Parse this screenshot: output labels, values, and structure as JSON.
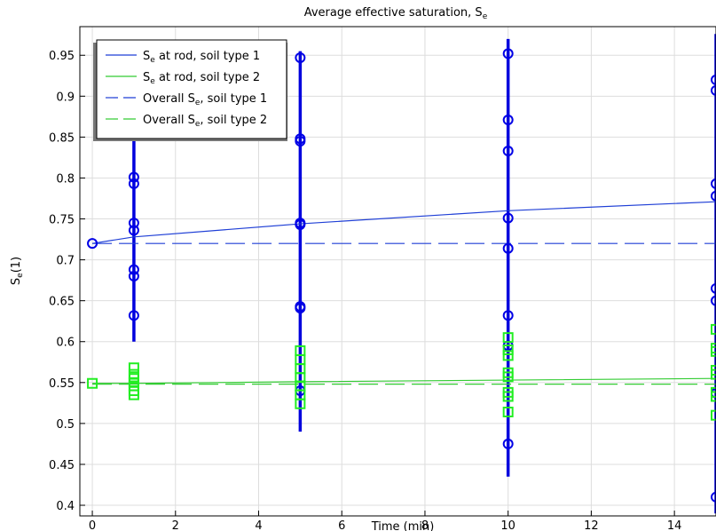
{
  "chart_data": {
    "type": "scatter",
    "title": "Average effective saturation, S",
    "title_sub": "e",
    "xlabel": "Time (min)",
    "ylabel_main": "S",
    "ylabel_sub": "e",
    "ylabel_tail": "(1)",
    "xlim": [
      -0.3,
      15
    ],
    "ylim": [
      0.387,
      0.985
    ],
    "xticks": [
      0,
      2,
      4,
      6,
      8,
      10,
      12,
      14
    ],
    "yticks": [
      0.4,
      0.45,
      0.5,
      0.55,
      0.6,
      0.65,
      0.7,
      0.75,
      0.8,
      0.85,
      0.9,
      0.95
    ],
    "grid": true,
    "legend_position": "top-left",
    "colors": {
      "type1_line": "#1f3fd6",
      "type2_line": "#33cc33",
      "type1_markers": "#0000e6",
      "type2_markers": "#22ee22",
      "errorbar": "#0000dd"
    },
    "legend": [
      {
        "main": "S",
        "sub": "e",
        "tail": " at rod, soil type 1",
        "style": "solid",
        "color": "#1f3fd6"
      },
      {
        "main": "S",
        "sub": "e",
        "tail": " at rod, soil type 2",
        "style": "solid",
        "color": "#33cc33"
      },
      {
        "main": "Overall S",
        "sub": "e",
        "tail": ", soil type 1",
        "style": "dashed",
        "color": "#1f3fd6"
      },
      {
        "main": "Overall S",
        "sub": "e",
        "tail": ", soil type 2",
        "style": "dashed",
        "color": "#33cc33"
      }
    ],
    "series": [
      {
        "x": [
          0,
          1,
          5,
          10,
          15
        ],
        "y": [
          0.72,
          0.728,
          0.744,
          0.76,
          0.771
        ]
      },
      {
        "x": [
          0,
          1,
          5,
          10,
          15
        ],
        "y": [
          0.549,
          0.549,
          0.551,
          0.553,
          0.555
        ]
      },
      {
        "x": [
          0,
          15
        ],
        "y": [
          0.72,
          0.72
        ]
      },
      {
        "x": [
          0,
          15
        ],
        "y": [
          0.548,
          0.548
        ]
      }
    ],
    "type1_points": [
      {
        "x": 0,
        "y": 0.72
      },
      {
        "x": 1,
        "y": 0.801
      },
      {
        "x": 1,
        "y": 0.793
      },
      {
        "x": 1,
        "y": 0.745
      },
      {
        "x": 1,
        "y": 0.736
      },
      {
        "x": 1,
        "y": 0.688
      },
      {
        "x": 1,
        "y": 0.68
      },
      {
        "x": 1,
        "y": 0.632
      },
      {
        "x": 5,
        "y": 0.947
      },
      {
        "x": 5,
        "y": 0.848
      },
      {
        "x": 5,
        "y": 0.845
      },
      {
        "x": 5,
        "y": 0.745
      },
      {
        "x": 5,
        "y": 0.743
      },
      {
        "x": 5,
        "y": 0.643
      },
      {
        "x": 5,
        "y": 0.641
      },
      {
        "x": 5,
        "y": 0.54
      },
      {
        "x": 10,
        "y": 0.952
      },
      {
        "x": 10,
        "y": 0.871
      },
      {
        "x": 10,
        "y": 0.833
      },
      {
        "x": 10,
        "y": 0.751
      },
      {
        "x": 10,
        "y": 0.714
      },
      {
        "x": 10,
        "y": 0.632
      },
      {
        "x": 10,
        "y": 0.595
      },
      {
        "x": 10,
        "y": 0.475
      },
      {
        "x": 15,
        "y": 0.92
      },
      {
        "x": 15,
        "y": 0.907
      },
      {
        "x": 15,
        "y": 0.793
      },
      {
        "x": 15,
        "y": 0.778
      },
      {
        "x": 15,
        "y": 0.665
      },
      {
        "x": 15,
        "y": 0.65
      },
      {
        "x": 15,
        "y": 0.537
      },
      {
        "x": 15,
        "y": 0.41
      }
    ],
    "type2_points": [
      {
        "x": 0,
        "y": 0.549
      },
      {
        "x": 1,
        "y": 0.568
      },
      {
        "x": 1,
        "y": 0.56
      },
      {
        "x": 1,
        "y": 0.555
      },
      {
        "x": 1,
        "y": 0.55
      },
      {
        "x": 1,
        "y": 0.546
      },
      {
        "x": 1,
        "y": 0.54
      },
      {
        "x": 1,
        "y": 0.535
      },
      {
        "x": 5,
        "y": 0.589
      },
      {
        "x": 5,
        "y": 0.578
      },
      {
        "x": 5,
        "y": 0.567
      },
      {
        "x": 5,
        "y": 0.556
      },
      {
        "x": 5,
        "y": 0.546
      },
      {
        "x": 5,
        "y": 0.535
      },
      {
        "x": 5,
        "y": 0.524
      },
      {
        "x": 10,
        "y": 0.605
      },
      {
        "x": 10,
        "y": 0.59
      },
      {
        "x": 10,
        "y": 0.583
      },
      {
        "x": 10,
        "y": 0.562
      },
      {
        "x": 10,
        "y": 0.557
      },
      {
        "x": 10,
        "y": 0.538
      },
      {
        "x": 10,
        "y": 0.533
      },
      {
        "x": 10,
        "y": 0.514
      },
      {
        "x": 15,
        "y": 0.615
      },
      {
        "x": 15,
        "y": 0.592
      },
      {
        "x": 15,
        "y": 0.588
      },
      {
        "x": 15,
        "y": 0.565
      },
      {
        "x": 15,
        "y": 0.56
      },
      {
        "x": 15,
        "y": 0.538
      },
      {
        "x": 15,
        "y": 0.533
      },
      {
        "x": 15,
        "y": 0.51
      }
    ],
    "error_bars": [
      {
        "x": 1,
        "low": 0.6,
        "high": 0.845
      },
      {
        "x": 5,
        "low": 0.49,
        "high": 0.955
      },
      {
        "x": 10,
        "low": 0.435,
        "high": 0.97
      },
      {
        "x": 15,
        "low": 0.39,
        "high": 0.976
      }
    ]
  }
}
